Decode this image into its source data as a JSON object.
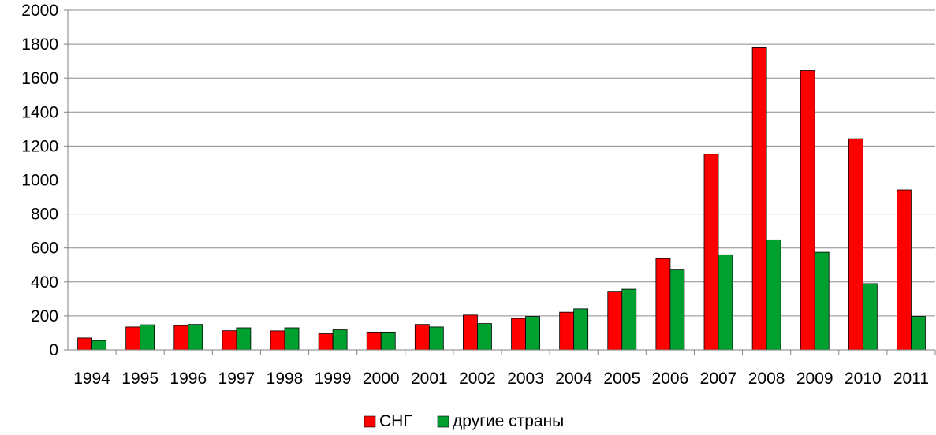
{
  "chart_data": {
    "type": "bar",
    "title": "",
    "xlabel": "",
    "ylabel": "",
    "ylim": [
      0,
      2000
    ],
    "yticks": [
      0,
      200,
      400,
      600,
      800,
      1000,
      1200,
      1400,
      1600,
      1800,
      2000
    ],
    "grid": true,
    "legend_position": "bottom",
    "categories": [
      "1994",
      "1995",
      "1996",
      "1997",
      "1998",
      "1999",
      "2000",
      "2001",
      "2002",
      "2003",
      "2004",
      "2005",
      "2006",
      "2007",
      "2008",
      "2009",
      "2010",
      "2011"
    ],
    "series": [
      {
        "name": "СНГ",
        "color": "#ff0000",
        "values": [
          70,
          135,
          143,
          113,
          112,
          95,
          105,
          150,
          205,
          185,
          222,
          345,
          537,
          1152,
          1780,
          1645,
          1243,
          942
        ]
      },
      {
        "name": "другие страны",
        "color": "#00a030",
        "values": [
          55,
          148,
          150,
          130,
          130,
          118,
          105,
          135,
          155,
          197,
          242,
          357,
          475,
          560,
          648,
          575,
          390,
          197
        ]
      }
    ]
  }
}
